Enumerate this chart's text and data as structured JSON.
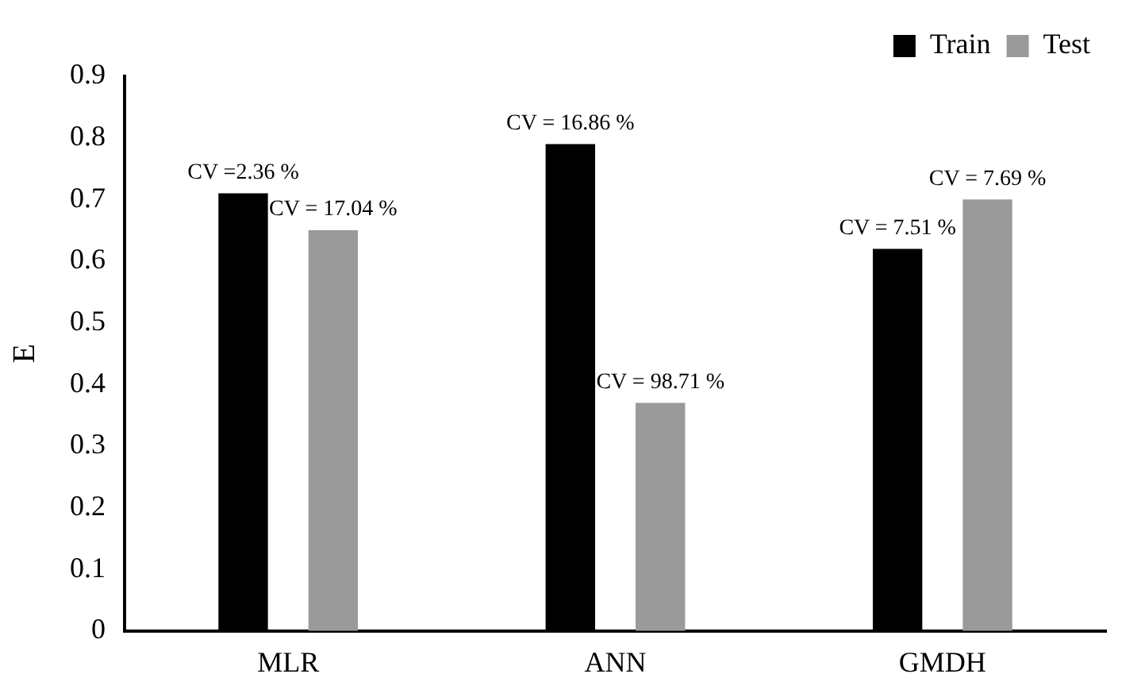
{
  "chart_data": {
    "type": "bar",
    "ylabel": "E",
    "categories": [
      "MLR",
      "ANN",
      "GMDH"
    ],
    "series": [
      {
        "name": "Train",
        "color": "#000000",
        "values": [
          0.71,
          0.79,
          0.62
        ]
      },
      {
        "name": "Test",
        "color": "#9a9a9a",
        "values": [
          0.65,
          0.37,
          0.7
        ]
      }
    ],
    "annotations": [
      "CV =2.36 %",
      "CV = 16.86 %",
      "CV = 7.51 %",
      "CV = 17.04 %",
      "CV = 98.71 %",
      "CV = 7.69 %"
    ],
    "ylim": [
      0,
      0.9
    ],
    "yticks": [
      0,
      0.1,
      0.2,
      0.3,
      0.4,
      0.5,
      0.6,
      0.7,
      0.8,
      0.9
    ],
    "grid": false,
    "legend": "top right"
  }
}
